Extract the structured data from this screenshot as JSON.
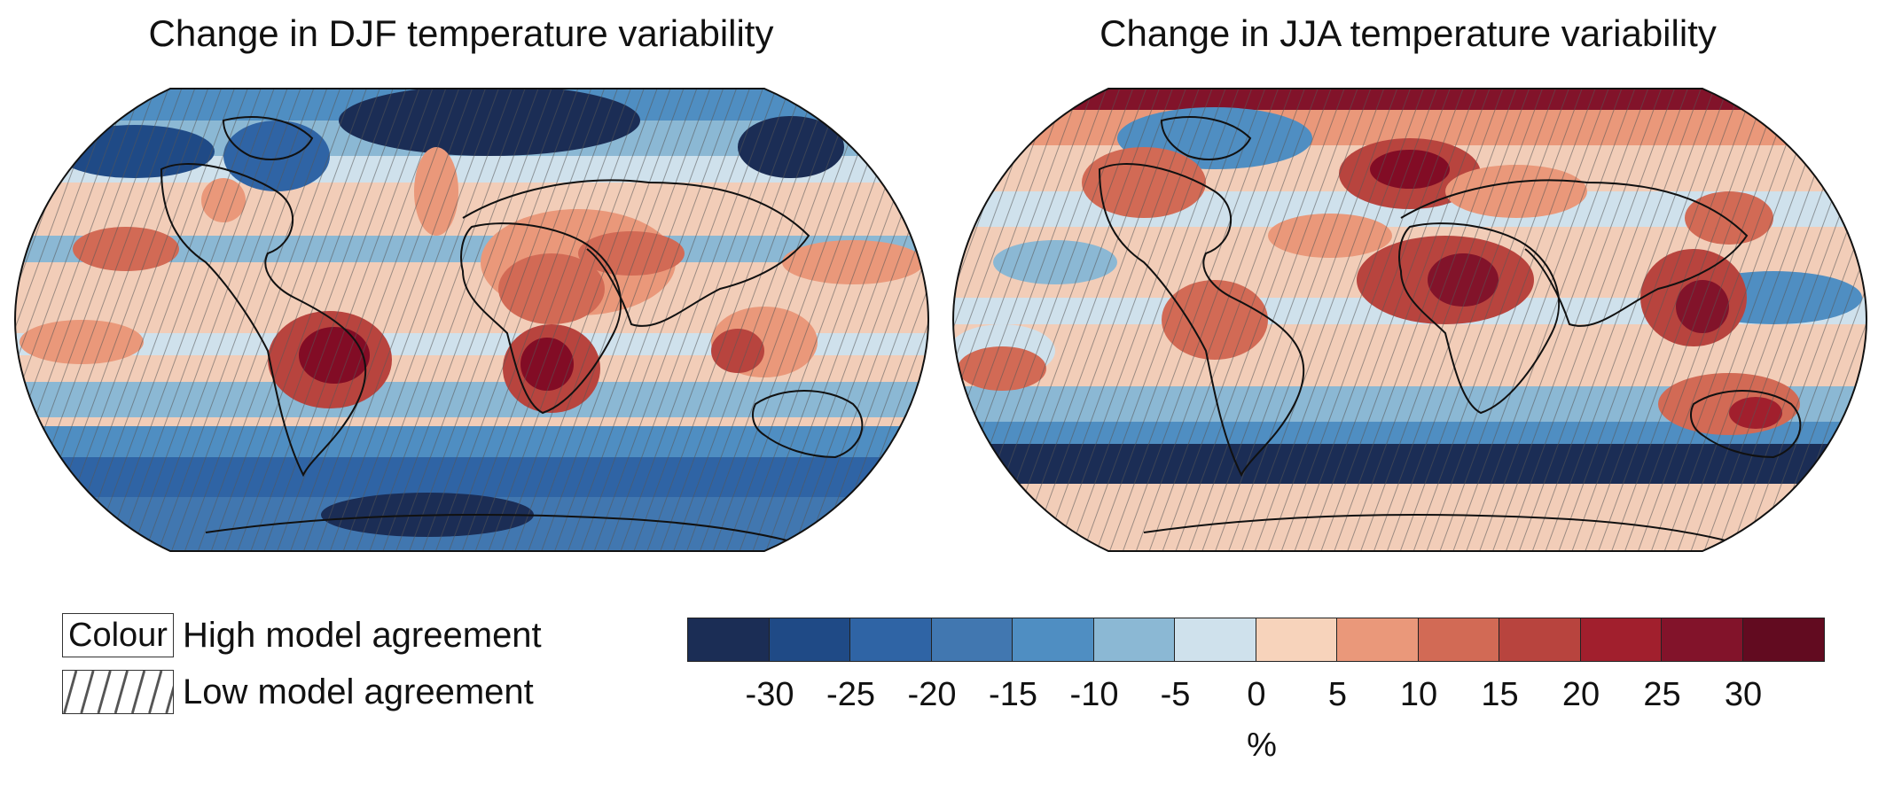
{
  "maps": [
    {
      "title": "Change in DJF temperature variability",
      "season": "DJF"
    },
    {
      "title": "Change in JJA temperature variability",
      "season": "JJA"
    }
  ],
  "legend": {
    "colour_swatch_label": "Colour",
    "high_agreement": "High model agreement",
    "low_agreement": "Low model agreement"
  },
  "colorbar": {
    "unit": "%",
    "ticks": [
      "-30",
      "-25",
      "-20",
      "-15",
      "-10",
      "-5",
      "0",
      "5",
      "10",
      "15",
      "20",
      "25",
      "30"
    ],
    "colors": [
      "#1b2d55",
      "#1f4a86",
      "#2f64a5",
      "#4177b0",
      "#4f8ec2",
      "#8bb8d4",
      "#cfe1ec",
      "#f7d3bb",
      "#ea987a",
      "#d26a55",
      "#b8443e",
      "#a11f2d",
      "#82132a",
      "#620b20"
    ]
  },
  "colors": {
    "ocean_neutral": "#f2cdb8",
    "hatch": "#555555",
    "coastline": "#111111"
  }
}
